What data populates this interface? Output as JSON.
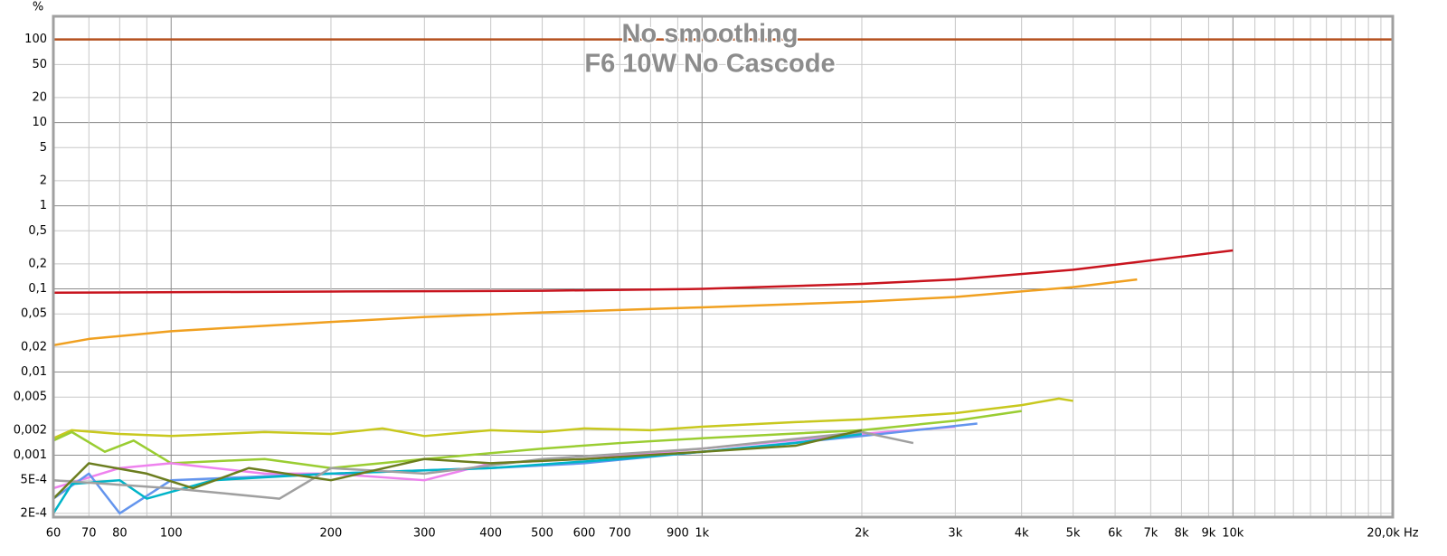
{
  "chart_data": {
    "type": "line",
    "title": "No smoothing",
    "subtitle": "F6 10W No Cascode",
    "y_label": "%",
    "xscale": "log",
    "yscale": "log",
    "grid": true,
    "xlim": [
      60,
      20000
    ],
    "ylim": [
      0.00018,
      190
    ],
    "xticks": [
      60,
      70,
      80,
      100,
      200,
      300,
      400,
      500,
      600,
      700,
      900,
      {
        "value": 1000,
        "label": "1k"
      },
      {
        "value": 2000,
        "label": "2k"
      },
      {
        "value": 3000,
        "label": "3k"
      },
      {
        "value": 4000,
        "label": "4k"
      },
      {
        "value": 5000,
        "label": "5k"
      },
      {
        "value": 6000,
        "label": "6k"
      },
      {
        "value": 7000,
        "label": "7k"
      },
      {
        "value": 8000,
        "label": "8k"
      },
      {
        "value": 9000,
        "label": "9k"
      },
      {
        "value": 10000,
        "label": "10k"
      },
      {
        "value": 20000,
        "label": "20,0k Hz"
      }
    ],
    "xgrid_minor": [
      90,
      800,
      11000,
      12000,
      13000,
      14000,
      15000,
      16000,
      17000,
      18000,
      19000
    ],
    "yticks": [
      100,
      50,
      20,
      10,
      5,
      2,
      1,
      {
        "value": 0.5,
        "label": "0,5"
      },
      {
        "value": 0.2,
        "label": "0,2"
      },
      {
        "value": 0.1,
        "label": "0,1"
      },
      {
        "value": 0.05,
        "label": "0,05"
      },
      {
        "value": 0.02,
        "label": "0,02"
      },
      {
        "value": 0.01,
        "label": "0,01"
      },
      {
        "value": 0.005,
        "label": "0,005"
      },
      {
        "value": 0.002,
        "label": "0,002"
      },
      {
        "value": 0.001,
        "label": "0,001"
      },
      {
        "value": 0.0005,
        "label": "5E-4"
      },
      {
        "value": 0.0002,
        "label": "2E-4"
      }
    ],
    "series": [
      {
        "color": "#b4501e",
        "x": [
          60,
          20000
        ],
        "values": [
          100,
          100
        ]
      },
      {
        "color": "#c8141e",
        "x": [
          60,
          200,
          500,
          1000,
          2000,
          3000,
          5000,
          7000,
          10000
        ],
        "values": [
          0.09,
          0.093,
          0.095,
          0.1,
          0.115,
          0.13,
          0.17,
          0.22,
          0.29
        ]
      },
      {
        "color": "#f0a020",
        "x": [
          60,
          70,
          100,
          200,
          300,
          500,
          1000,
          2000,
          3000,
          5000,
          6600
        ],
        "values": [
          0.021,
          0.025,
          0.031,
          0.04,
          0.046,
          0.052,
          0.06,
          0.07,
          0.08,
          0.105,
          0.13
        ]
      },
      {
        "color": "#c8c81e",
        "x": [
          60,
          65,
          80,
          100,
          150,
          200,
          250,
          300,
          400,
          500,
          600,
          800,
          1000,
          1500,
          2000,
          3000,
          4000,
          4700,
          5000
        ],
        "values": [
          0.0016,
          0.002,
          0.0018,
          0.0017,
          0.0019,
          0.0018,
          0.0021,
          0.0017,
          0.002,
          0.0019,
          0.0021,
          0.002,
          0.0022,
          0.0025,
          0.0027,
          0.0032,
          0.004,
          0.0048,
          0.0045
        ]
      },
      {
        "color": "#9acd32",
        "x": [
          60,
          65,
          75,
          85,
          100,
          150,
          200,
          300,
          500,
          700,
          1000,
          2000,
          3000,
          4000
        ],
        "values": [
          0.0015,
          0.0019,
          0.0011,
          0.0015,
          0.0008,
          0.0009,
          0.0007,
          0.0009,
          0.0012,
          0.0014,
          0.0016,
          0.002,
          0.0026,
          0.0034
        ]
      },
      {
        "color": "#ee82ee",
        "x": [
          60,
          80,
          100,
          150,
          200,
          300,
          400,
          600,
          1000,
          2000,
          3000
        ],
        "values": [
          0.0004,
          0.0007,
          0.0008,
          0.0006,
          0.0006,
          0.0005,
          0.0008,
          0.0009,
          0.0012,
          0.0018,
          0.0022
        ]
      },
      {
        "color": "#6495ed",
        "x": [
          60,
          70,
          80,
          100,
          200,
          400,
          600,
          1000,
          2000,
          3300
        ],
        "values": [
          0.0003,
          0.0006,
          0.0002,
          0.0005,
          0.0006,
          0.0007,
          0.0008,
          0.0011,
          0.0017,
          0.0024
        ]
      },
      {
        "color": "#00b4c8",
        "x": [
          60,
          65,
          80,
          90,
          120,
          200,
          400,
          700,
          1000,
          1500,
          2000
        ],
        "values": [
          0.0002,
          0.00045,
          0.0005,
          0.0003,
          0.0005,
          0.0006,
          0.0007,
          0.0009,
          0.0011,
          0.0014,
          0.0018
        ]
      },
      {
        "color": "#a0a0a0",
        "x": [
          60,
          100,
          160,
          200,
          300,
          500,
          1000,
          2000,
          2500
        ],
        "values": [
          0.0005,
          0.0004,
          0.0003,
          0.0007,
          0.0006,
          0.0009,
          0.0012,
          0.0019,
          0.0014
        ]
      },
      {
        "color": "#6b7d1e",
        "x": [
          60,
          70,
          90,
          110,
          140,
          200,
          300,
          400,
          600,
          1000,
          1500,
          2000
        ],
        "values": [
          0.0003,
          0.0008,
          0.0006,
          0.0004,
          0.0007,
          0.0005,
          0.0009,
          0.0008,
          0.0009,
          0.0011,
          0.0013,
          0.002
        ]
      }
    ]
  }
}
